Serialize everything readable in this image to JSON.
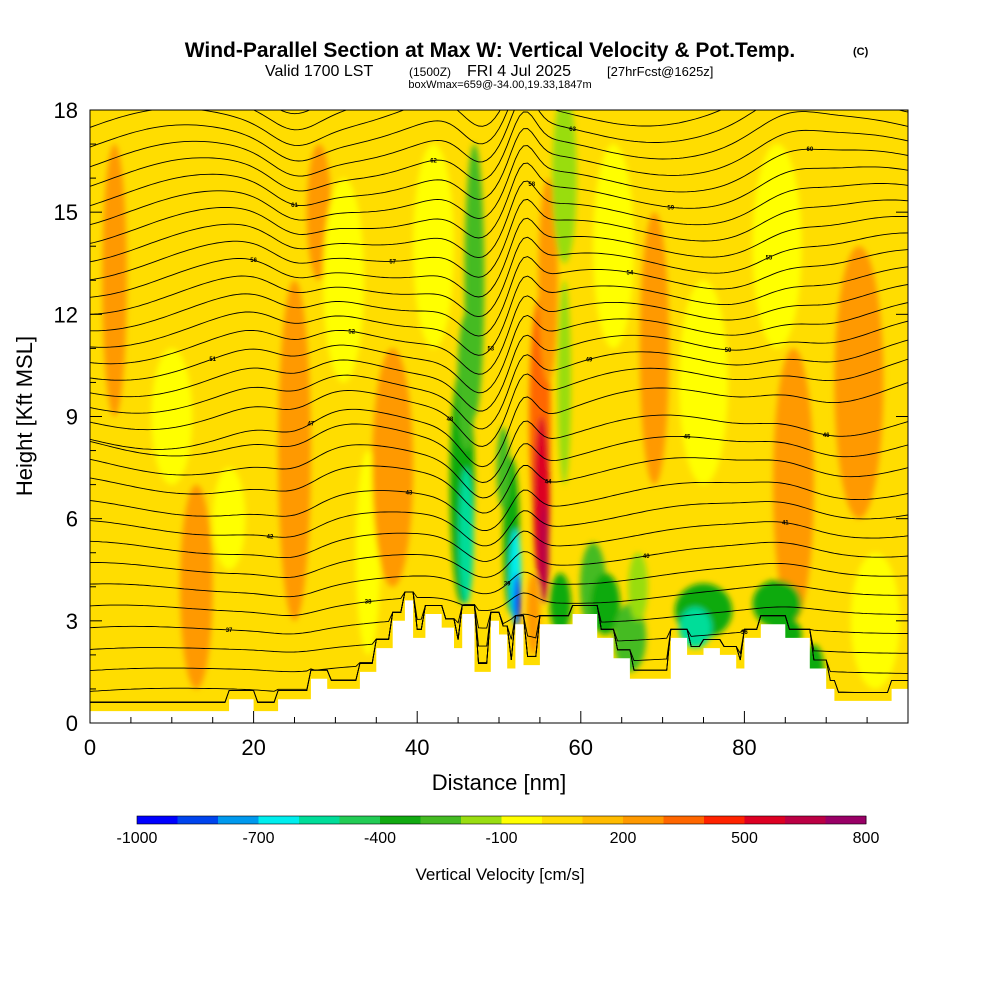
{
  "header": {
    "title": "Wind-Parallel Section at Max W: Vertical Velocity & Pot.Temp.",
    "title_mark": "(C)",
    "valid_prefix": "Valid 1700 LST",
    "valid_zulu": "(1500Z)",
    "valid_date": "FRI 4 Jul 2025",
    "valid_fcst": "[27hrFcst@1625z]",
    "boxinfo": "boxWmax=659@-34.00,19.33,1847m"
  },
  "chart_data": {
    "type": "heatmap",
    "title": "Wind-Parallel Section at Max W: Vertical Velocity & Pot.Temp.",
    "xlabel": "Distance [nm]",
    "ylabel": "Height [Kft MSL]",
    "xlim": [
      0,
      100
    ],
    "ylim": [
      0,
      18
    ],
    "x_ticks": [
      "0",
      "20",
      "40",
      "60",
      "80"
    ],
    "y_ticks": [
      "0",
      "3",
      "6",
      "9",
      "12",
      "15",
      "18"
    ],
    "terrain": [
      [
        0,
        0.35
      ],
      [
        17,
        0.35
      ],
      [
        17,
        0.7
      ],
      [
        20,
        0.7
      ],
      [
        20,
        0.35
      ],
      [
        23,
        0.35
      ],
      [
        23,
        0.7
      ],
      [
        27,
        0.7
      ],
      [
        27,
        1.3
      ],
      [
        29,
        1.3
      ],
      [
        29,
        1.0
      ],
      [
        33,
        1.0
      ],
      [
        33,
        1.5
      ],
      [
        35,
        1.5
      ],
      [
        35,
        2.2
      ],
      [
        37,
        2.2
      ],
      [
        37,
        3.0
      ],
      [
        38.5,
        3.0
      ],
      [
        38.5,
        3.6
      ],
      [
        39.5,
        3.6
      ],
      [
        39.5,
        2.5
      ],
      [
        41,
        2.5
      ],
      [
        41,
        3.2
      ],
      [
        43,
        3.2
      ],
      [
        43,
        2.8
      ],
      [
        44.5,
        2.8
      ],
      [
        44.5,
        2.2
      ],
      [
        45.5,
        2.2
      ],
      [
        45.5,
        3.2
      ],
      [
        47,
        3.2
      ],
      [
        47,
        1.5
      ],
      [
        49,
        1.5
      ],
      [
        49,
        3.0
      ],
      [
        50,
        3.0
      ],
      [
        50,
        2.6
      ],
      [
        51,
        2.6
      ],
      [
        51,
        1.6
      ],
      [
        52,
        1.6
      ],
      [
        52,
        2.9
      ],
      [
        53,
        2.9
      ],
      [
        53,
        1.7
      ],
      [
        55,
        1.7
      ],
      [
        55,
        2.9
      ],
      [
        59,
        2.9
      ],
      [
        59,
        3.2
      ],
      [
        62,
        3.2
      ],
      [
        62,
        2.5
      ],
      [
        64,
        2.5
      ],
      [
        64,
        1.9
      ],
      [
        66,
        1.9
      ],
      [
        66,
        1.3
      ],
      [
        71,
        1.3
      ],
      [
        71,
        2.5
      ],
      [
        73,
        2.5
      ],
      [
        73,
        2.0
      ],
      [
        75,
        2.0
      ],
      [
        75,
        2.2
      ],
      [
        77,
        2.2
      ],
      [
        77,
        2.0
      ],
      [
        79,
        2.0
      ],
      [
        79,
        1.6
      ],
      [
        80,
        1.6
      ],
      [
        80,
        2.5
      ],
      [
        82,
        2.5
      ],
      [
        82,
        2.9
      ],
      [
        85,
        2.9
      ],
      [
        85,
        2.5
      ],
      [
        88,
        2.5
      ],
      [
        88,
        1.6
      ],
      [
        90,
        1.6
      ],
      [
        90,
        1.0
      ],
      [
        91,
        1.0
      ],
      [
        91,
        0.65
      ],
      [
        98,
        0.65
      ],
      [
        98,
        1.0
      ],
      [
        100,
        1.0
      ],
      [
        100,
        0
      ]
    ],
    "blobs": [
      {
        "x": 3,
        "y": 13,
        "rx": 1.5,
        "ry": 4,
        "value": 200
      },
      {
        "x": 10,
        "y": 9,
        "rx": 2.5,
        "ry": 2,
        "value": -100
      },
      {
        "x": 13,
        "y": 4,
        "rx": 2,
        "ry": 3,
        "value": 200
      },
      {
        "x": 17,
        "y": 6,
        "rx": 2,
        "ry": 1.5,
        "value": -100
      },
      {
        "x": 25,
        "y": 8,
        "rx": 2,
        "ry": 5,
        "value": 200
      },
      {
        "x": 28,
        "y": 15,
        "rx": 1.5,
        "ry": 2,
        "value": 200
      },
      {
        "x": 34,
        "y": 5,
        "rx": 1.5,
        "ry": 3,
        "value": -100
      },
      {
        "x": 37,
        "y": 7.5,
        "rx": 2.5,
        "ry": 3.5,
        "value": 200
      },
      {
        "x": 31,
        "y": 13,
        "rx": 2.5,
        "ry": 3,
        "value": -100
      },
      {
        "x": 42,
        "y": 14,
        "rx": 2.5,
        "ry": 3,
        "value": -100
      },
      {
        "x": 64,
        "y": 14,
        "rx": 2.5,
        "ry": 3,
        "value": -100
      },
      {
        "x": 69,
        "y": 11,
        "rx": 1.8,
        "ry": 4,
        "value": 200
      },
      {
        "x": 75,
        "y": 10,
        "rx": 3,
        "ry": 3,
        "value": -100
      },
      {
        "x": 84,
        "y": 14,
        "rx": 3,
        "ry": 3,
        "value": -100
      },
      {
        "x": 86,
        "y": 7,
        "rx": 2.5,
        "ry": 4,
        "value": 200
      },
      {
        "x": 94,
        "y": 10,
        "rx": 3,
        "ry": 4,
        "value": 200
      },
      {
        "x": 96,
        "y": 3,
        "rx": 3,
        "ry": 2,
        "value": -100
      },
      {
        "x": 45.5,
        "y": 7,
        "rx": 1.5,
        "ry": 3.5,
        "value": -400
      },
      {
        "x": 46,
        "y": 5.5,
        "rx": 0.9,
        "ry": 2,
        "value": -550
      },
      {
        "x": 47,
        "y": 13,
        "rx": 1.2,
        "ry": 4,
        "value": -300
      },
      {
        "x": 46,
        "y": 10,
        "rx": 1.1,
        "ry": 2,
        "value": -280
      },
      {
        "x": 51.5,
        "y": 5.5,
        "rx": 1,
        "ry": 2.3,
        "value": -400
      },
      {
        "x": 52,
        "y": 4.3,
        "rx": 0.7,
        "ry": 1.4,
        "value": -700
      },
      {
        "x": 52.2,
        "y": 3.6,
        "rx": 0.4,
        "ry": 0.8,
        "value": -1000
      },
      {
        "x": 50.5,
        "y": 7.5,
        "rx": 0.8,
        "ry": 1.2,
        "value": -250
      },
      {
        "x": 55,
        "y": 9,
        "rx": 1.3,
        "ry": 3.5,
        "value": 300
      },
      {
        "x": 55.2,
        "y": 6.5,
        "rx": 1,
        "ry": 2.5,
        "value": 500
      },
      {
        "x": 55.5,
        "y": 5,
        "rx": 0.6,
        "ry": 1.5,
        "value": 659
      },
      {
        "x": 54.2,
        "y": 3.2,
        "rx": 0.8,
        "ry": 1.2,
        "value": 250
      },
      {
        "x": 56,
        "y": 13,
        "rx": 1.2,
        "ry": 3,
        "value": 200
      },
      {
        "x": 58,
        "y": 16,
        "rx": 1.5,
        "ry": 2.5,
        "value": -200
      },
      {
        "x": 58,
        "y": 10,
        "rx": 0.8,
        "ry": 3,
        "value": -150
      },
      {
        "x": 57.5,
        "y": 3.5,
        "rx": 1.3,
        "ry": 0.9,
        "value": -350
      },
      {
        "x": 61.5,
        "y": 4,
        "rx": 1.6,
        "ry": 1.3,
        "value": -300
      },
      {
        "x": 63,
        "y": 3.5,
        "rx": 1.8,
        "ry": 0.9,
        "value": -400
      },
      {
        "x": 66,
        "y": 2.5,
        "rx": 2,
        "ry": 1,
        "value": -300
      },
      {
        "x": 75,
        "y": 3.3,
        "rx": 3.5,
        "ry": 0.8,
        "value": -350
      },
      {
        "x": 74,
        "y": 2.8,
        "rx": 2,
        "ry": 0.6,
        "value": -600
      },
      {
        "x": 84,
        "y": 3.5,
        "rx": 3,
        "ry": 0.7,
        "value": -350
      },
      {
        "x": 85,
        "y": 2.6,
        "rx": 2,
        "ry": 0.5,
        "value": -400
      },
      {
        "x": 88.5,
        "y": 1.6,
        "rx": 1.2,
        "ry": 0.7,
        "value": -350
      },
      {
        "x": 67,
        "y": 4,
        "rx": 1.2,
        "ry": 1,
        "value": -150
      }
    ],
    "theta_levels": [
      "32",
      "33",
      "34",
      "35",
      "36",
      "37",
      "38",
      "39",
      "40",
      "41",
      "42",
      "43",
      "44",
      "45",
      "46",
      "47",
      "48",
      "49",
      "50",
      "51",
      "52",
      "53",
      "54",
      "55",
      "56",
      "57",
      "58",
      "59",
      "60",
      "61",
      "62",
      "63",
      "64",
      "65",
      "66",
      "67"
    ],
    "isentrope_base": [
      0.1,
      0.6,
      1.2,
      1.8,
      2.4,
      3.0,
      3.6,
      4.2,
      4.8,
      5.4,
      6.0,
      6.6,
      7.3,
      7.9,
      8.5,
      9.1,
      9.7,
      10.2,
      10.7,
      11.2,
      11.7,
      12.2,
      12.7,
      13.2,
      13.7,
      14.2,
      14.7,
      15.2,
      15.7,
      16.2,
      16.7,
      17.2,
      17.7,
      18.2,
      18.7,
      19.2
    ],
    "colorbar": {
      "label": "Vertical Velocity [cm/s]",
      "min": -1000,
      "max": 800,
      "step": 100,
      "tick_labels": [
        "-1000",
        "-700",
        "-400",
        "-100",
        "200",
        "500",
        "800"
      ],
      "colors": [
        "#0000ff",
        "#0044ee",
        "#0099ee",
        "#00eeee",
        "#00dd99",
        "#22cc55",
        "#11aa11",
        "#44bb22",
        "#99dd11",
        "#ffff00",
        "#ffdd00",
        "#ffbb00",
        "#ff9900",
        "#ff6600",
        "#ff2200",
        "#dd0022",
        "#bb0044",
        "#990066"
      ]
    }
  }
}
